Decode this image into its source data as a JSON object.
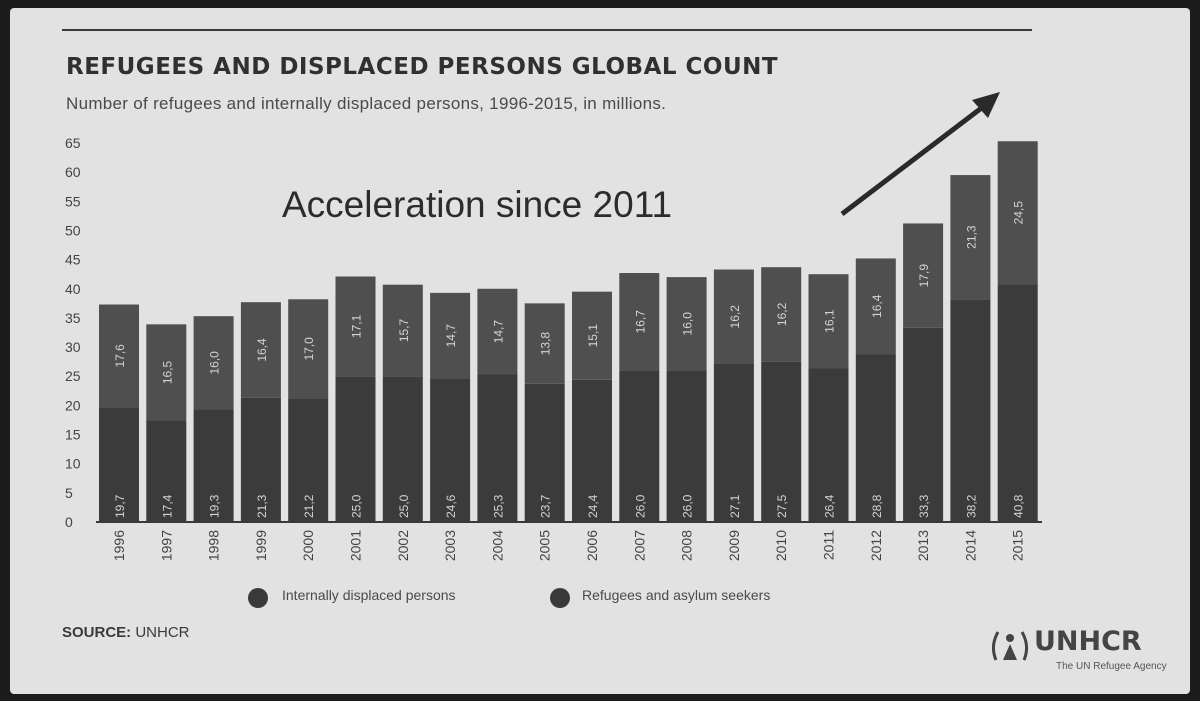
{
  "title": "REFUGEES AND DISPLACED PERSONS GLOBAL COUNT",
  "subtitle": "Number of refugees and internally displaced persons, 1996-2015, in millions.",
  "annotation": "Acceleration since 2011",
  "source_key": "SOURCE:",
  "source_value": "UNHCR",
  "logo": {
    "name": "UNHCR",
    "tagline": "The UN Refugee Agency"
  },
  "colors": {
    "background": "#e2e2e2",
    "bar_lower": "#3b3b3b",
    "bar_upper": "#4f4f4f",
    "text": "#303030"
  },
  "chart_data": {
    "type": "bar",
    "stacked": true,
    "categories": [
      "1996",
      "1997",
      "1998",
      "1999",
      "2000",
      "2001",
      "2002",
      "2003",
      "2004",
      "2005",
      "2006",
      "2007",
      "2008",
      "2009",
      "2010",
      "2011",
      "2012",
      "2013",
      "2014",
      "2015"
    ],
    "series": [
      {
        "name": "Internally displaced persons",
        "values": [
          19.7,
          17.4,
          19.3,
          21.3,
          21.2,
          25.0,
          25.0,
          24.6,
          25.3,
          23.7,
          24.4,
          26.0,
          26.0,
          27.1,
          27.5,
          26.4,
          28.8,
          33.3,
          38.2,
          40.8
        ]
      },
      {
        "name": "Refugees and asylum seekers",
        "values": [
          17.6,
          16.5,
          16.0,
          16.4,
          17.0,
          17.1,
          15.7,
          14.7,
          14.7,
          13.8,
          15.1,
          16.7,
          16.0,
          16.2,
          16.2,
          16.1,
          16.4,
          17.9,
          21.3,
          24.5
        ]
      }
    ],
    "value_labels": {
      "lower": [
        "19,7",
        "17,4",
        "19,3",
        "21,3",
        "21,2",
        "25,0",
        "25,0",
        "24,6",
        "25,3",
        "23,7",
        "24,4",
        "26,0",
        "26,0",
        "27,1",
        "27,5",
        "26,4",
        "28,8",
        "33,3",
        "38,2",
        "40,8"
      ],
      "upper": [
        "17,6",
        "16,5",
        "16,0",
        "16,4",
        "17,0",
        "17,1",
        "15,7",
        "14,7",
        "14,7",
        "13,8",
        "15,1",
        "16,7",
        "16,0",
        "16,2",
        "16,2",
        "16,1",
        "16,4",
        "17,9",
        "21,3",
        "24,5"
      ]
    },
    "yticks": [
      "0",
      "5",
      "10",
      "15",
      "20",
      "25",
      "30",
      "35",
      "40",
      "45",
      "50",
      "55",
      "60",
      "65"
    ],
    "ylim": [
      0,
      65
    ],
    "legend_position": "bottom",
    "grid": false
  }
}
